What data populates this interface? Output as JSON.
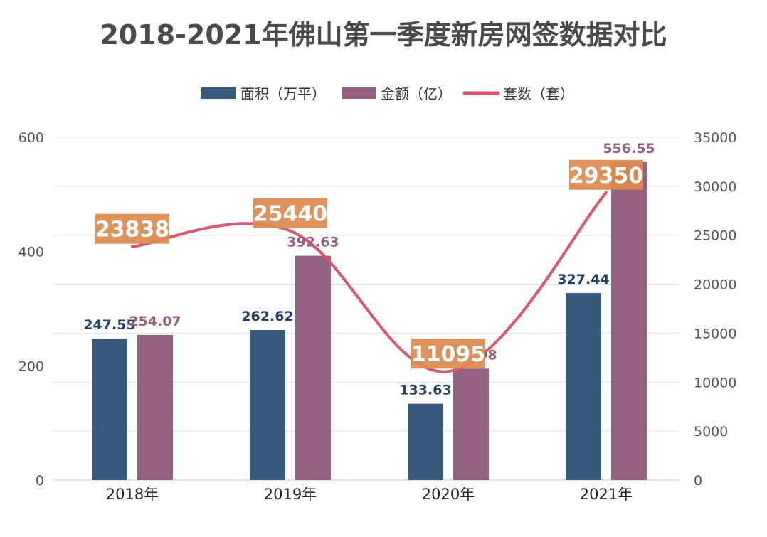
{
  "chart_data": {
    "type": "bar",
    "title": "2018-2021年佛山第一季度新房网签数据对比",
    "categories": [
      "2018年",
      "2019年",
      "2020年",
      "2021年"
    ],
    "series": [
      {
        "name": "面积（万平）",
        "type": "bar",
        "axis": "left",
        "color": "#365a7a",
        "label_color": "#22406a",
        "values": [
          247.55,
          262.62,
          133.63,
          327.44
        ]
      },
      {
        "name": "金额（亿）",
        "type": "bar",
        "axis": "left",
        "color": "#93617f",
        "label_color": "#93617f",
        "values": [
          254.07,
          392.63,
          194.98,
          556.55
        ]
      },
      {
        "name": "套数（套）",
        "type": "line",
        "axis": "right",
        "color": "#d9576f",
        "label_bg": "#dc8a4e",
        "values": [
          23838,
          25440,
          11095,
          29350
        ]
      }
    ],
    "y_left": {
      "lim": [
        0,
        600
      ],
      "ticks": [
        "0",
        "200",
        "400",
        "600"
      ]
    },
    "y_right": {
      "lim": [
        0,
        35000
      ],
      "ticks": [
        "0",
        "5000",
        "10000",
        "15000",
        "20000",
        "25000",
        "30000",
        "35000"
      ]
    },
    "grid": true,
    "legend_position": "top-center"
  }
}
